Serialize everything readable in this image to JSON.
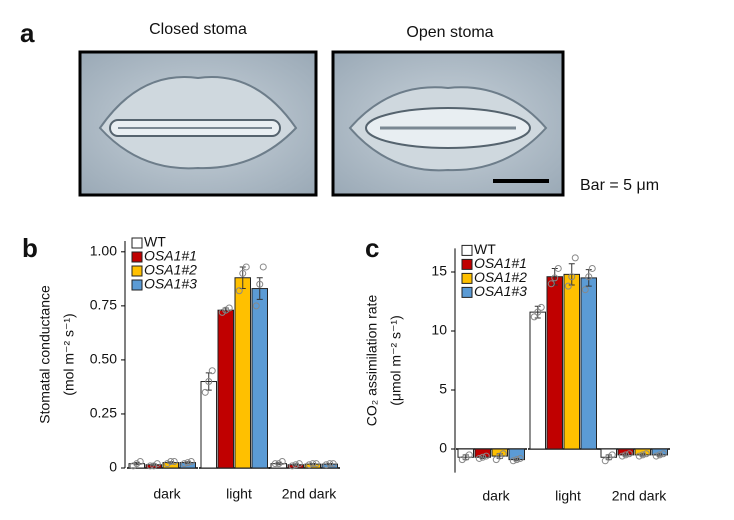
{
  "figure": {
    "panel_a": {
      "label": "a",
      "images": [
        {
          "caption": "Closed stoma"
        },
        {
          "caption": "Open stoma"
        }
      ],
      "scale_bar": "Bar = 5 μm"
    }
  },
  "chart_data": [
    {
      "type": "bar",
      "label": "b",
      "y_label": [
        "Stomatal conductance",
        "(mol m⁻² s⁻¹)"
      ],
      "categories": [
        "dark",
        "light",
        "2nd dark"
      ],
      "series": [
        {
          "name": "WT",
          "color": "#ffffff",
          "name_style": "normal",
          "values": [
            0.02,
            0.4,
            0.02
          ],
          "errors": [
            0.005,
            0.04,
            0.005
          ],
          "points": [
            [
              0.01,
              0.02,
              0.03
            ],
            [
              0.35,
              0.4,
              0.45
            ],
            [
              0.02,
              0.02,
              0.03
            ]
          ]
        },
        {
          "name": "OSA1#1",
          "color": "#c00000",
          "name_style": "italic",
          "values": [
            0.015,
            0.73,
            0.015
          ],
          "errors": [
            0.004,
            0.01,
            0.004
          ],
          "points": [
            [
              0.01,
              0.01,
              0.02
            ],
            [
              0.72,
              0.73,
              0.74
            ],
            [
              0.01,
              0.015,
              0.02
            ]
          ]
        },
        {
          "name": "OSA1#2",
          "color": "#ffc000",
          "name_style": "italic",
          "values": [
            0.025,
            0.88,
            0.018
          ],
          "errors": [
            0.004,
            0.05,
            0.003
          ],
          "points": [
            [
              0.02,
              0.03,
              0.03
            ],
            [
              0.82,
              0.9,
              0.93
            ],
            [
              0.015,
              0.02,
              0.02
            ]
          ]
        },
        {
          "name": "OSA1#3",
          "color": "#5b9bd5",
          "name_style": "italic",
          "values": [
            0.025,
            0.83,
            0.018
          ],
          "errors": [
            0.004,
            0.05,
            0.003
          ],
          "points": [
            [
              0.02,
              0.025,
              0.03
            ],
            [
              0.75,
              0.85,
              0.93
            ],
            [
              0.015,
              0.02,
              0.02
            ]
          ]
        }
      ],
      "ylim": [
        0,
        1.05
      ],
      "yticks": [
        0,
        0.25,
        {
          "value": 0.5,
          "label": "0.50"
        },
        0.75,
        {
          "value": 1,
          "label": "1.00"
        }
      ],
      "legend": "upper left"
    },
    {
      "type": "bar",
      "label": "c",
      "y_label": [
        "CO₂ assimilation rate",
        "(μmol  m⁻² s⁻¹)"
      ],
      "categories": [
        "dark",
        "light",
        "2nd dark"
      ],
      "series": [
        {
          "name": "WT",
          "color": "#ffffff",
          "name_style": "normal",
          "values": [
            -0.7,
            11.6,
            -0.7
          ],
          "errors": [
            0.2,
            0.5,
            0.2
          ],
          "points": [
            [
              -0.9,
              -0.7,
              -0.5
            ],
            [
              11.2,
              11.6,
              12.0
            ],
            [
              -1.0,
              -0.7,
              -0.5
            ]
          ]
        },
        {
          "name": "OSA1#1",
          "color": "#c00000",
          "name_style": "italic",
          "values": [
            -0.7,
            14.6,
            -0.5
          ],
          "errors": [
            0.1,
            0.7,
            0.1
          ],
          "points": [
            [
              -0.8,
              -0.7,
              -0.6
            ],
            [
              14.0,
              14.5,
              15.3
            ],
            [
              -0.6,
              -0.5,
              -0.4
            ]
          ]
        },
        {
          "name": "OSA1#2",
          "color": "#ffc000",
          "name_style": "italic",
          "values": [
            -0.6,
            14.8,
            -0.5
          ],
          "errors": [
            0.2,
            0.9,
            0.1
          ],
          "points": [
            [
              -0.9,
              -0.6,
              -0.4
            ],
            [
              13.8,
              14.6,
              16.2
            ],
            [
              -0.6,
              -0.5,
              -0.4
            ]
          ]
        },
        {
          "name": "OSA1#3",
          "color": "#5b9bd5",
          "name_style": "italic",
          "values": [
            -0.9,
            14.5,
            -0.5
          ],
          "errors": [
            0.1,
            0.7,
            0.1
          ],
          "points": [
            [
              -1.0,
              -0.9,
              -0.8
            ],
            [
              13.5,
              14.6,
              15.3
            ],
            [
              -0.6,
              -0.5,
              -0.4
            ]
          ]
        }
      ],
      "ylim": [
        -2,
        17
      ],
      "yticks": [
        0,
        5,
        10,
        15
      ],
      "legend": "upper left"
    }
  ]
}
